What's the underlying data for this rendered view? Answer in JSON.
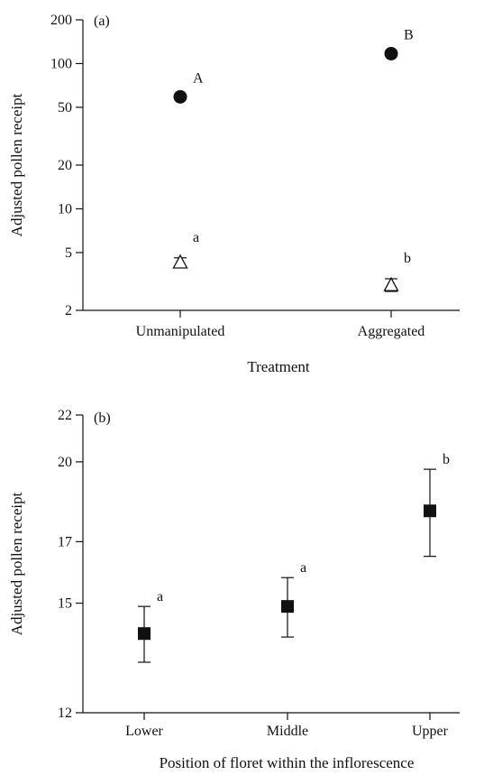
{
  "chart_data": [
    {
      "type": "scatter",
      "panel_label": "(a)",
      "xlabel": "Treatment",
      "ylabel": "Adjusted pollen receipt",
      "yscale": "log",
      "ylim": [
        2,
        200
      ],
      "yticks": [
        2,
        5,
        10,
        20,
        50,
        100,
        200
      ],
      "categories": [
        "Unmanipulated",
        "Aggregated"
      ],
      "series": [
        {
          "marker": "filled-circle",
          "values": [
            59,
            117
          ],
          "errors": [
            1.5,
            3
          ],
          "letters": [
            "A",
            "B"
          ]
        },
        {
          "marker": "open-triangle",
          "values": [
            4.3,
            3.0
          ],
          "errors": [
            0.3,
            0.3
          ],
          "letters": [
            "a",
            "b"
          ]
        }
      ]
    },
    {
      "type": "scatter",
      "panel_label": "(b)",
      "xlabel": "Position of floret within the inflorescence",
      "ylabel": "Adjusted pollen receipt",
      "yscale": "log",
      "ylim": [
        12,
        22
      ],
      "yticks": [
        12,
        15,
        17,
        20,
        22
      ],
      "categories": [
        "Lower",
        "Middle",
        "Upper"
      ],
      "series": [
        {
          "marker": "filled-square",
          "values": [
            14.1,
            14.9,
            18.1
          ],
          "errors": [
            0.8,
            0.9,
            1.6
          ],
          "letters": [
            "a",
            "a",
            "b"
          ]
        }
      ]
    }
  ]
}
